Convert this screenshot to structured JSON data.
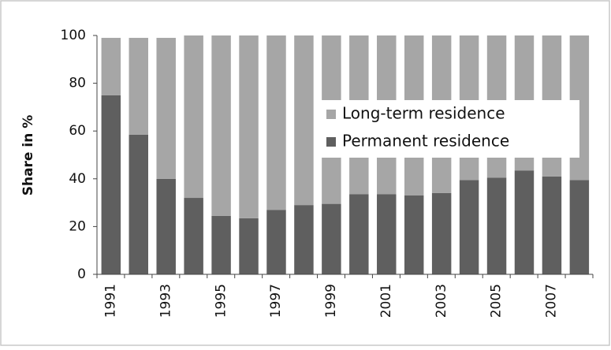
{
  "chart_data": {
    "type": "stacked-bar",
    "y_label": "Share in %",
    "categories": [
      "1991",
      null,
      "1993",
      null,
      "1995",
      null,
      "1997",
      null,
      "1999",
      null,
      "2001",
      null,
      "2003",
      null,
      "2005",
      null,
      "2007",
      null
    ],
    "series": [
      {
        "name": "Permanent residence",
        "color": "#5f5f5f",
        "values": [
          75,
          58.5,
          40,
          32,
          24.5,
          23.5,
          27,
          29,
          29.5,
          33.5,
          33.5,
          33,
          34,
          39.5,
          40.5,
          43.5,
          41,
          39.5
        ]
      },
      {
        "name": "Long-term residence",
        "color": "#a6a6a6",
        "values": [
          24,
          40.5,
          59,
          68,
          75.5,
          76.5,
          73,
          71,
          70.5,
          66.5,
          66.5,
          67,
          66,
          60.5,
          59.5,
          56.5,
          59,
          60.5
        ]
      }
    ],
    "ylim": [
      0,
      100
    ],
    "yticks": [
      0,
      20,
      40,
      60,
      80,
      100
    ],
    "legend": "upper-right"
  }
}
